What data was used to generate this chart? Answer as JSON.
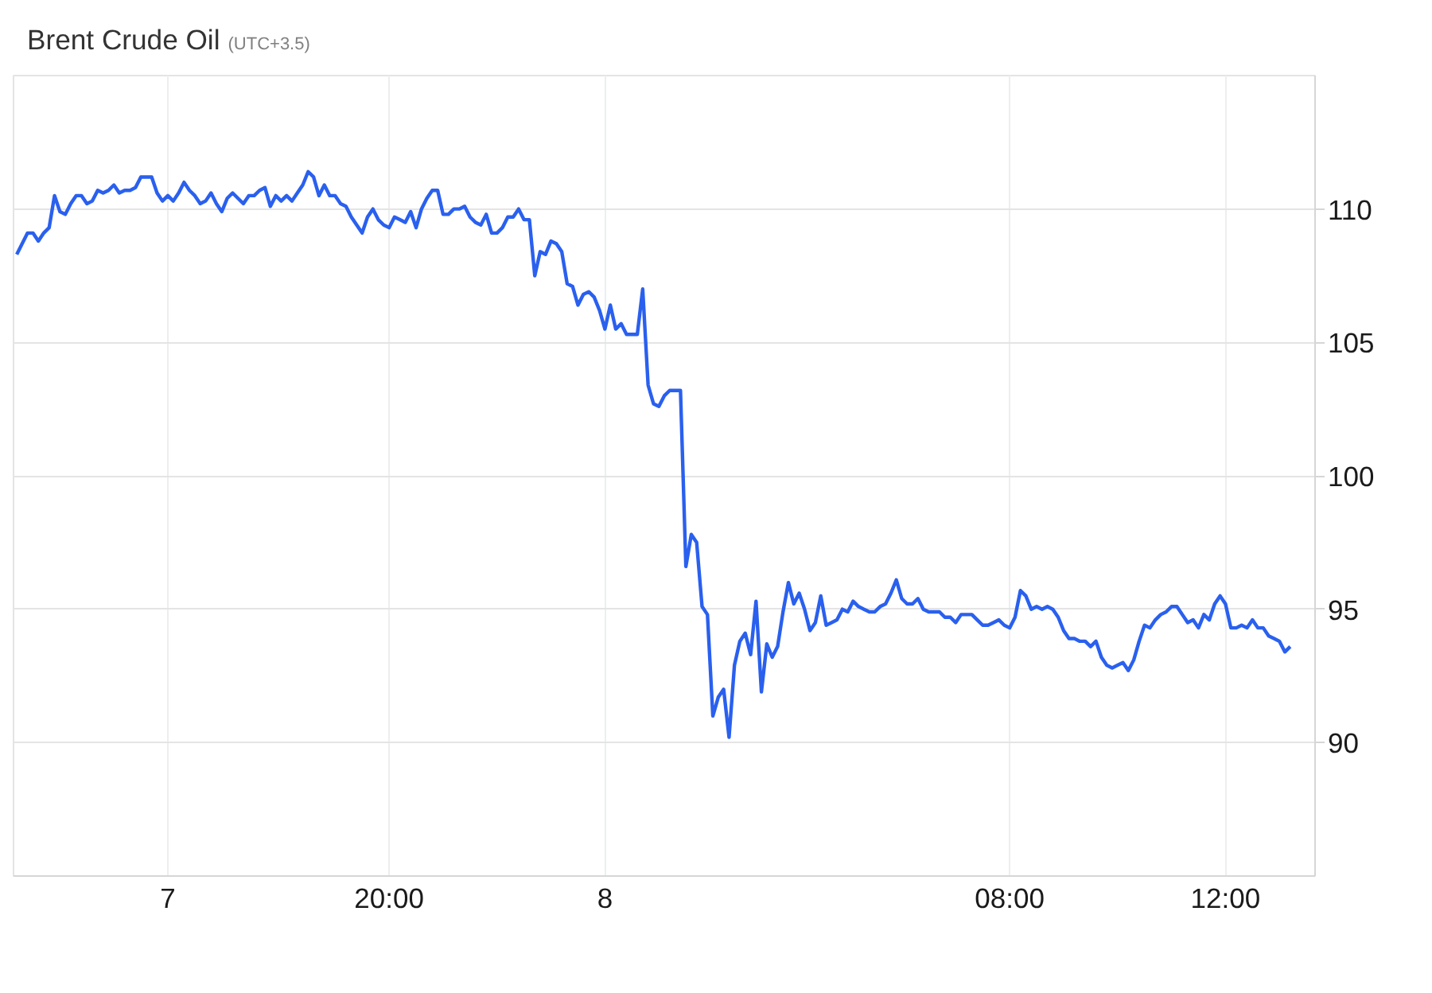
{
  "chart_data": {
    "type": "line",
    "title": "Brent Crude Oil",
    "subtitle": "(UTC+3.5)",
    "categories": [
      null,
      null,
      null,
      null,
      null,
      null,
      null,
      null,
      null,
      null,
      null,
      null,
      null,
      null,
      null,
      null,
      null,
      null,
      null,
      null,
      null,
      null,
      null,
      null,
      null,
      null,
      null,
      null,
      "7",
      null,
      null,
      null,
      null,
      null,
      null,
      null,
      null,
      null,
      null,
      null,
      null,
      null,
      null,
      null,
      null,
      null,
      null,
      null,
      null,
      null,
      null,
      null,
      null,
      null,
      null,
      null,
      null,
      null,
      null,
      null,
      null,
      null,
      null,
      null,
      null,
      null,
      null,
      null,
      null,
      "20:00",
      null,
      null,
      null,
      null,
      null,
      null,
      null,
      null,
      null,
      null,
      null,
      null,
      null,
      null,
      null,
      null,
      null,
      null,
      null,
      null,
      null,
      null,
      null,
      null,
      null,
      null,
      null,
      null,
      null,
      null,
      null,
      null,
      null,
      null,
      null,
      null,
      null,
      null,
      null,
      "8",
      null,
      null,
      null,
      null,
      null,
      null,
      null,
      null,
      null,
      null,
      null,
      null,
      null,
      null,
      null,
      null,
      null,
      null,
      null,
      null,
      null,
      null,
      null,
      null,
      null,
      null,
      null,
      null,
      null,
      null,
      null,
      null,
      null,
      null,
      null,
      null,
      null,
      null,
      null,
      null,
      null,
      null,
      null,
      null,
      null,
      null,
      null,
      null,
      null,
      null,
      null,
      null,
      null,
      null,
      null,
      null,
      null,
      null,
      null,
      null,
      null,
      null,
      null,
      null,
      null,
      null,
      null,
      null,
      null,
      null,
      null,
      null,
      null,
      null,
      "08:00",
      null,
      null,
      null,
      null,
      null,
      null,
      null,
      null,
      null,
      null,
      null,
      null,
      null,
      null,
      null,
      null,
      null,
      null,
      null,
      null,
      null,
      null,
      null,
      null,
      null,
      null,
      null,
      null,
      null,
      null,
      null,
      null,
      null,
      null,
      null,
      null,
      null,
      null,
      null,
      "12:00",
      null,
      null,
      null,
      null,
      null,
      null,
      null,
      null,
      null,
      null,
      null,
      null
    ],
    "series": [
      {
        "color": "#2a60ee",
        "values": [
          108.3,
          108.7,
          109.1,
          109.1,
          108.8,
          109.1,
          109.3,
          110.5,
          109.9,
          109.8,
          110.2,
          110.5,
          110.5,
          110.2,
          110.3,
          110.7,
          110.6,
          110.7,
          110.9,
          110.6,
          110.7,
          110.7,
          110.8,
          111.2,
          111.2,
          111.2,
          110.6,
          110.3,
          110.5,
          110.3,
          110.6,
          111.0,
          110.7,
          110.5,
          110.2,
          110.3,
          110.6,
          110.2,
          109.9,
          110.4,
          110.6,
          110.4,
          110.2,
          110.5,
          110.5,
          110.7,
          110.8,
          110.1,
          110.5,
          110.3,
          110.5,
          110.3,
          110.6,
          110.9,
          111.4,
          111.2,
          110.5,
          110.9,
          110.5,
          110.5,
          110.2,
          110.1,
          109.7,
          109.4,
          109.1,
          109.7,
          110.0,
          109.6,
          109.4,
          109.3,
          109.7,
          109.6,
          109.5,
          109.9,
          109.3,
          110.0,
          110.4,
          110.7,
          110.7,
          109.8,
          109.8,
          110.0,
          110.0,
          110.1,
          109.7,
          109.5,
          109.4,
          109.8,
          109.1,
          109.1,
          109.3,
          109.7,
          109.7,
          110.0,
          109.6,
          109.6,
          107.5,
          108.4,
          108.3,
          108.8,
          108.7,
          108.4,
          107.2,
          107.1,
          106.4,
          106.8,
          106.9,
          106.7,
          106.2,
          105.5,
          106.4,
          105.5,
          105.7,
          105.3,
          105.3,
          105.3,
          107.0,
          103.4,
          102.7,
          102.6,
          103.0,
          103.2,
          103.2,
          103.2,
          96.6,
          97.8,
          97.5,
          95.1,
          94.8,
          91.0,
          91.7,
          92.0,
          90.2,
          92.9,
          93.8,
          94.1,
          93.3,
          95.3,
          91.9,
          93.7,
          93.2,
          93.6,
          94.9,
          96.0,
          95.2,
          95.6,
          95.0,
          94.2,
          94.5,
          95.5,
          94.4,
          94.5,
          94.6,
          95.0,
          94.9,
          95.3,
          95.1,
          95.0,
          94.9,
          94.9,
          95.1,
          95.2,
          95.6,
          96.1,
          95.4,
          95.2,
          95.2,
          95.4,
          95.0,
          94.9,
          94.9,
          94.9,
          94.7,
          94.7,
          94.5,
          94.8,
          94.8,
          94.8,
          94.6,
          94.4,
          94.4,
          94.5,
          94.6,
          94.4,
          94.3,
          94.7,
          95.7,
          95.5,
          95.0,
          95.1,
          95.0,
          95.1,
          95.0,
          94.7,
          94.2,
          93.9,
          93.9,
          93.8,
          93.8,
          93.6,
          93.8,
          93.2,
          92.9,
          92.8,
          92.9,
          93.0,
          92.7,
          93.1,
          93.8,
          94.4,
          94.3,
          94.6,
          94.8,
          94.9,
          95.1,
          95.1,
          94.8,
          94.5,
          94.6,
          94.3,
          94.8,
          94.6,
          95.2,
          95.5,
          95.2,
          94.3,
          94.3,
          94.4,
          94.3,
          94.6,
          94.3,
          94.3,
          94.0,
          93.9,
          93.8,
          93.4,
          93.6
        ]
      }
    ],
    "ylim": [
      85,
      115
    ],
    "yticks": [
      90,
      95,
      100,
      105,
      110
    ],
    "grid": true
  }
}
